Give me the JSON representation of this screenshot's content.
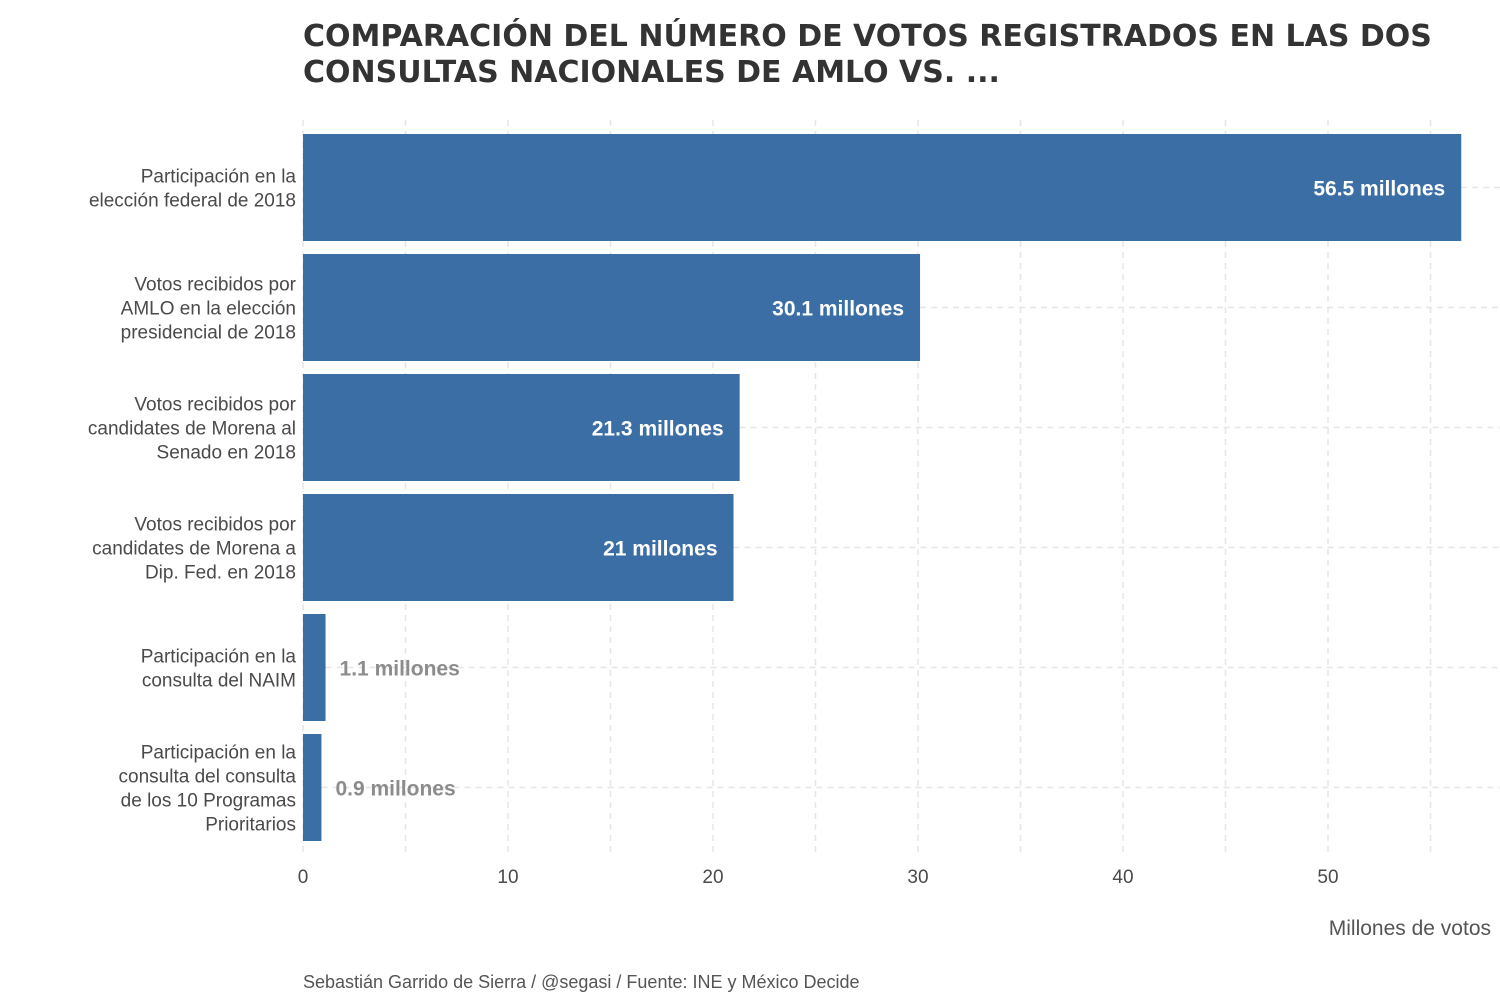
{
  "chart_data": {
    "type": "bar",
    "orientation": "horizontal",
    "title_lines": [
      "COMPARACIÓN DEL NÚMERO DE VOTOS REGISTRADOS EN LAS DOS",
      "CONSULTAS NACIONALES DE AMLO VS. ..."
    ],
    "xlabel": "Millones de votos",
    "ylabel": "",
    "xlim": [
      0,
      57
    ],
    "xticks": [
      0,
      10,
      20,
      30,
      40,
      50
    ],
    "grid": true,
    "categories": [
      [
        "Participación en la",
        "elección federal de 2018"
      ],
      [
        "Votos recibidos por",
        "AMLO en la elección",
        "presidencial de 2018"
      ],
      [
        "Votos recibidos por",
        "candidates de Morena al",
        "Senado en 2018"
      ],
      [
        "Votos recibidos por",
        "candidates de Morena a",
        "Dip. Fed. en 2018"
      ],
      [
        "Participación en la",
        "consulta del NAIM"
      ],
      [
        "Participación en la",
        "consulta del consulta",
        "de los 10 Programas",
        "Prioritarios"
      ]
    ],
    "values": [
      56.5,
      30.1,
      21.3,
      21,
      1.1,
      0.9
    ],
    "data_labels": [
      "56.5 millones",
      "30.1 millones",
      "21.3 millones",
      "21 millones",
      "1.1 millones",
      "0.9 millones"
    ],
    "caption": "Sebastián Garrido de Sierra / @segasi / Fuente: INE y México Decide"
  },
  "colors": {
    "bar": "#3a6ea5",
    "label_inside": "#ffffff",
    "label_outside": "#8c8c8c"
  }
}
